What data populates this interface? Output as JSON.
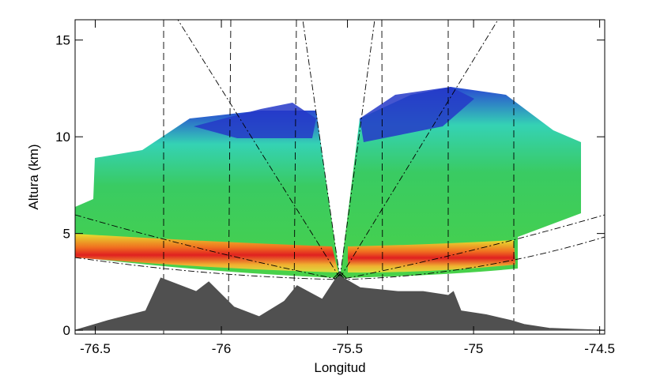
{
  "chart_data": {
    "type": "area",
    "x_label": "Longitud",
    "y_label": "Altura (km)",
    "xlim": [
      -76.58,
      -74.48
    ],
    "xticks": [
      -76.5,
      -76.0,
      -75.5,
      -75.0,
      -74.5
    ],
    "ylim": [
      -0.2,
      16.05
    ],
    "yticks": [
      0,
      5,
      10,
      15
    ],
    "color": "#505050",
    "x": [
      -76.58,
      -76.45,
      -76.3,
      -76.24,
      -76.1,
      -76.05,
      -75.95,
      -75.85,
      -75.75,
      -75.7,
      -75.6,
      -75.55,
      -75.53,
      -75.45,
      -75.3,
      -75.2,
      -75.1,
      -75.08,
      -75.05,
      -74.95,
      -74.85,
      -74.8,
      -74.7,
      -74.6,
      -74.48
    ],
    "values": [
      0,
      0.5,
      1.0,
      2.7,
      2.0,
      2.5,
      1.2,
      0.7,
      1.5,
      2.3,
      1.6,
      2.6,
      2.8,
      2.2,
      2.0,
      2.0,
      1.8,
      2.0,
      1.0,
      0.8,
      0.5,
      0.3,
      0.1,
      0.05,
      0
    ]
  }
}
